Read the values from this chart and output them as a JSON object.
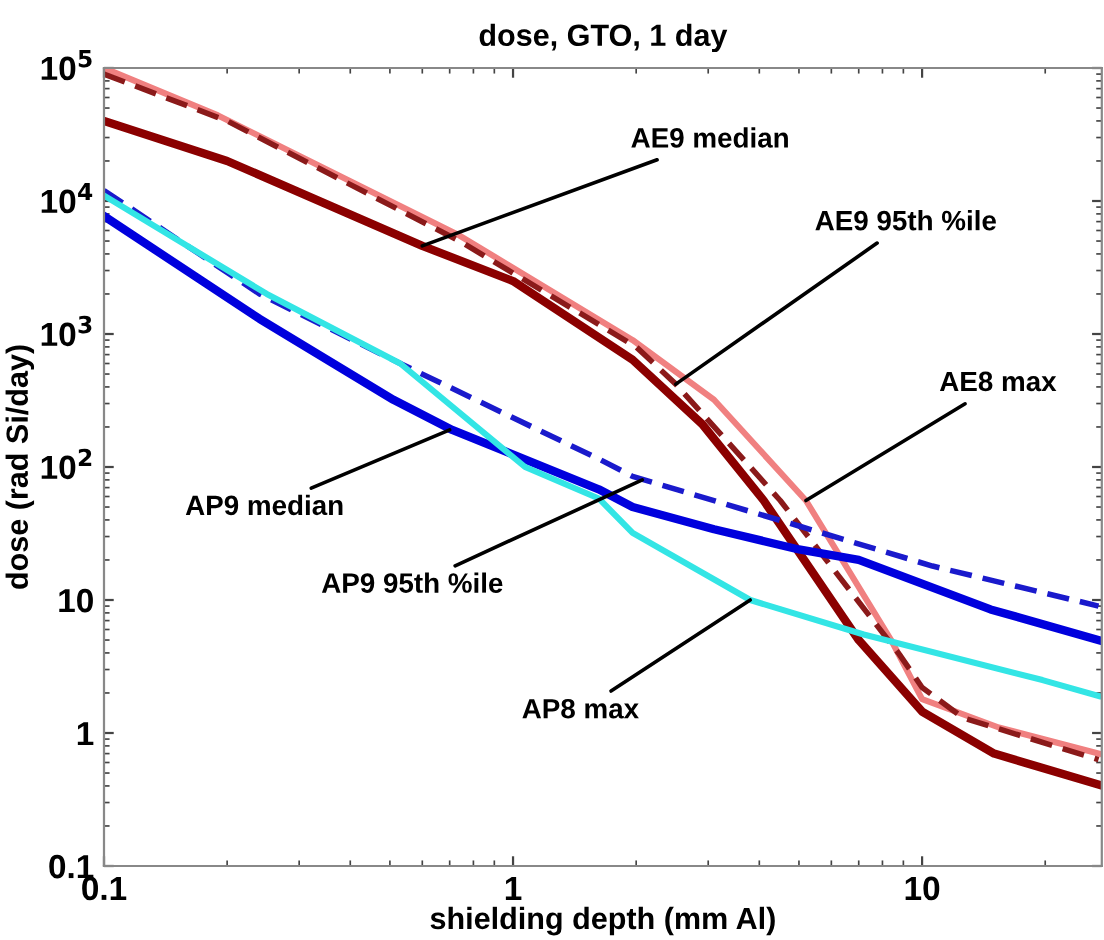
{
  "chart_data": {
    "type": "line",
    "title": "dose, GTO, 1 day",
    "xlabel": "shielding depth (mm Al)",
    "ylabel": "dose (rad Si/day)",
    "log": "xy",
    "grid": false,
    "legend": false,
    "xlim": [
      0.1,
      27.5
    ],
    "ylim": [
      0.1,
      100000
    ],
    "xticks": [
      0.1,
      1,
      10
    ],
    "yticks": [
      {
        "value": 0.1,
        "label": "0.1"
      },
      {
        "value": 1,
        "label": "1"
      },
      {
        "value": 10,
        "label": "10"
      },
      {
        "value": 100,
        "label": "10$^{2}$"
      },
      {
        "value": 1000,
        "label": "10$^{3}$"
      },
      {
        "value": 10000,
        "label": "10$^{4}$"
      },
      {
        "value": 100000,
        "label": "10$^{5}$"
      }
    ],
    "series": [
      {
        "color": "#8b0000",
        "line_style": "solid",
        "x": [
          0.1,
          0.2,
          0.6,
          1.0,
          1.96,
          2.9,
          4.1,
          7.0,
          10,
          15,
          27
        ],
        "values": [
          40000,
          20000,
          4600,
          2500,
          640,
          210,
          56,
          5,
          1.45,
          0.7,
          0.41
        ]
      },
      {
        "color": "#f08080",
        "line_style": "solid",
        "x": [
          0.1,
          0.19,
          0.74,
          1.96,
          3.1,
          5.2,
          8.4,
          10,
          15.4,
          27
        ],
        "values": [
          100000,
          44000,
          5500,
          900,
          320,
          56,
          5,
          1.8,
          1.1,
          0.7
        ]
      },
      {
        "color": "#8b1a1a",
        "line_style": "dashed",
        "x": [
          0.1,
          0.2,
          0.74,
          2.0,
          2.5,
          4.5,
          8.8,
          10,
          12.6,
          27
        ],
        "values": [
          90000,
          40000,
          5000,
          800,
          420,
          56,
          3.9,
          2.2,
          1.3,
          0.63
        ]
      },
      {
        "color": "#0000dd",
        "line_style": "solid",
        "x": [
          0.1,
          0.24,
          0.51,
          0.71,
          1.62,
          1.96,
          3.1,
          5,
          7,
          14.7,
          27
        ],
        "values": [
          7700,
          1300,
          320,
          190,
          68,
          50,
          34,
          24,
          20,
          8.5,
          5
        ]
      },
      {
        "color": "#1a1acc",
        "line_style": "dashed",
        "x": [
          0.1,
          0.24,
          0.53,
          1.62,
          1.96,
          5,
          10.6,
          27
        ],
        "values": [
          12000,
          2000,
          600,
          115,
          85,
          36,
          18,
          9
        ]
      },
      {
        "color": "#33e5e5",
        "line_style": "solid",
        "x": [
          0.1,
          0.25,
          0.53,
          1.07,
          1.62,
          1.96,
          3.8,
          7.2,
          19.7,
          27
        ],
        "values": [
          11000,
          2000,
          600,
          100,
          58,
          32,
          10,
          5.5,
          2.5,
          1.9
        ]
      }
    ],
    "annotations": [
      {
        "text": "AE9 median",
        "x": 0.6,
        "y": 4600
      },
      {
        "text": "AE9 95th %ile",
        "x": 2.5,
        "y": 420
      },
      {
        "text": "AE8 max",
        "x": 5.2,
        "y": 56
      },
      {
        "text": "AP9 median",
        "x": 0.7,
        "y": 190
      },
      {
        "text": "AP9 95th %ile",
        "x": 2.07,
        "y": 80
      },
      {
        "text": "AP8 max",
        "x": 3.8,
        "y": 10
      }
    ]
  }
}
